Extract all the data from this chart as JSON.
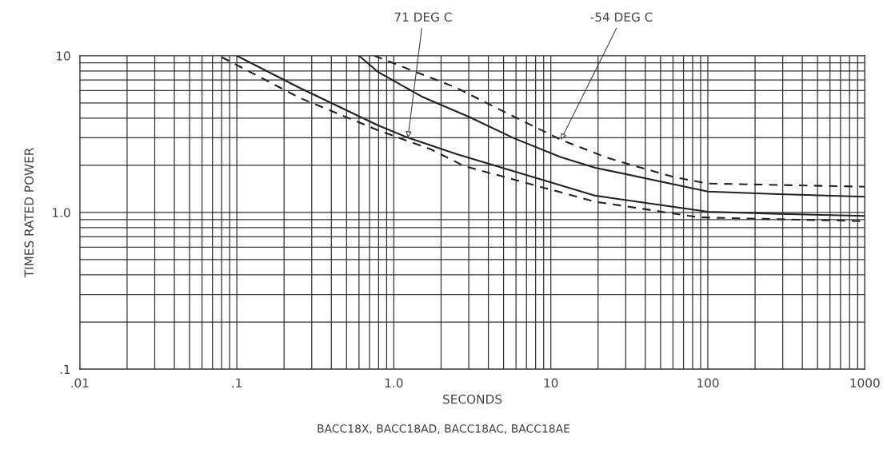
{
  "chart_data": {
    "type": "line",
    "xlabel": "SECONDS",
    "ylabel": "TIMES RATED POWER",
    "log": "xy",
    "grid": true,
    "xlim": [
      0.01,
      1000
    ],
    "ylim": [
      0.1,
      10
    ],
    "xticks": [
      {
        "value": 0.01,
        "label": ".01"
      },
      {
        "value": 0.1,
        "label": ".1"
      },
      {
        "value": 1,
        "label": "1.0"
      },
      10,
      100,
      1000
    ],
    "yticks": [
      {
        "value": 0.1,
        "label": ".1"
      },
      {
        "value": 1,
        "label": "1.0"
      },
      10
    ],
    "series": [
      {
        "color": "#222222",
        "line_style": "solid",
        "x": [
          0.6,
          0.79,
          1.5,
          3.05,
          5.8,
          11.6,
          19.2,
          100,
          282,
          1000
        ],
        "values": [
          10,
          7.9,
          5.5,
          4.05,
          2.98,
          2.25,
          1.93,
          1.36,
          1.31,
          1.26
        ]
      },
      {
        "color": "#222222",
        "line_style": "dashed",
        "x": [
          0.75,
          2.5,
          5.4,
          11.6,
          22.4,
          28,
          61,
          100,
          1000
        ],
        "values": [
          10,
          6.25,
          4.24,
          2.91,
          2.25,
          2.1,
          1.68,
          1.53,
          1.46
        ]
      },
      {
        "color": "#222222",
        "line_style": "solid",
        "x": [
          0.1,
          0.25,
          0.79,
          1.23,
          2.5,
          19.2,
          100,
          282,
          1000
        ],
        "values": [
          10,
          6.25,
          3.6,
          3.0,
          2.36,
          1.28,
          1.01,
          0.98,
          0.95
        ]
      },
      {
        "color": "#222222",
        "line_style": "dashed",
        "x": [
          0.08,
          0.25,
          0.79,
          1.72,
          2.8,
          19.2,
          89,
          1000
        ],
        "values": [
          9.8,
          5.4,
          3.35,
          2.53,
          1.98,
          1.17,
          0.93,
          0.88
        ]
      }
    ],
    "annotations": [
      {
        "text": "71 DEG C",
        "x": 1.23,
        "y": 3.0
      },
      {
        "text": "-54 DEG C",
        "x": 11.6,
        "y": 2.91
      },
      "BACC18X, BACC18AD, BACC18AC, BACC18AE"
    ]
  }
}
